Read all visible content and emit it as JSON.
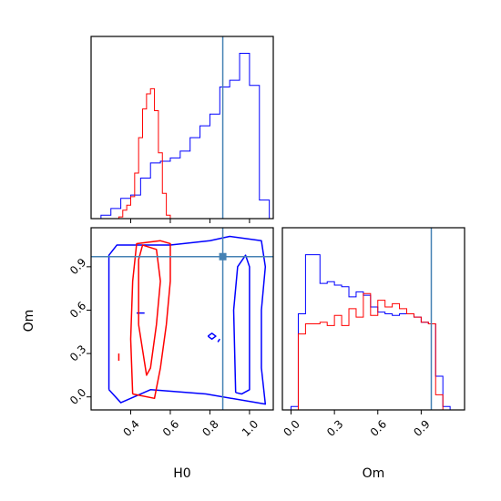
{
  "chart_data": {
    "type": "corner",
    "parameters": [
      "H0",
      "Om"
    ],
    "truth": {
      "H0": 0.865,
      "Om": 0.97
    },
    "colors": {
      "blue": "#0000ff",
      "red": "#ff0000",
      "truth": "#4682b4"
    },
    "panels": [
      {
        "id": "hist-H0",
        "type": "histogram",
        "xlim": [
          0.2,
          1.12
        ],
        "ylim": [
          0,
          1.08
        ],
        "x_ticks": [
          0.4,
          0.6,
          0.8,
          1.0
        ],
        "show_tick_labels": false,
        "series": [
          {
            "color": "blue",
            "edges": [
              0.2,
              0.25,
              0.3,
              0.35,
              0.4,
              0.45,
              0.5,
              0.55,
              0.6,
              0.65,
              0.7,
              0.75,
              0.8,
              0.85,
              0.9,
              0.95,
              1.0,
              1.05,
              1.1
            ],
            "counts": [
              0.0,
              0.02,
              0.06,
              0.12,
              0.14,
              0.24,
              0.33,
              0.34,
              0.36,
              0.4,
              0.48,
              0.55,
              0.62,
              0.78,
              0.82,
              0.98,
              0.79,
              0.11
            ]
          },
          {
            "color": "red",
            "edges": [
              0.34,
              0.36,
              0.38,
              0.4,
              0.42,
              0.44,
              0.46,
              0.48,
              0.5,
              0.52,
              0.54,
              0.56,
              0.58,
              0.6,
              0.62
            ],
            "counts": [
              0.01,
              0.05,
              0.08,
              0.13,
              0.27,
              0.48,
              0.65,
              0.74,
              0.77,
              0.64,
              0.39,
              0.15,
              0.02,
              0.0
            ]
          }
        ]
      },
      {
        "id": "contour-H0-Om",
        "type": "contour",
        "xlim": [
          0.2,
          1.12
        ],
        "ylim": [
          -0.09,
          1.17
        ],
        "x_ticks": [
          0.4,
          0.6,
          0.8,
          1.0
        ],
        "x_tick_labels": [
          "0.4",
          "0.6",
          "0.8",
          "1.0"
        ],
        "y_ticks": [
          0.0,
          0.3,
          0.6,
          0.9
        ],
        "y_tick_labels": [
          "0.0",
          "0.3",
          "0.6",
          "0.9"
        ],
        "xlabel": "H0",
        "ylabel": "Om",
        "contours": [
          {
            "color": "blue",
            "points": [
              [
                0.29,
                0.05
              ],
              [
                0.29,
                0.98
              ],
              [
                0.33,
                1.05
              ],
              [
                0.6,
                1.05
              ],
              [
                0.8,
                1.08
              ],
              [
                0.9,
                1.11
              ],
              [
                1.06,
                1.08
              ],
              [
                1.08,
                0.9
              ],
              [
                1.06,
                0.6
              ],
              [
                1.06,
                0.2
              ],
              [
                1.08,
                -0.05
              ],
              [
                0.78,
                0.02
              ],
              [
                0.5,
                0.05
              ],
              [
                0.35,
                -0.04
              ],
              [
                0.29,
                0.05
              ]
            ]
          },
          {
            "color": "blue",
            "points": [
              [
                0.43,
                0.58
              ],
              [
                0.47,
                0.58
              ]
            ]
          },
          {
            "color": "blue",
            "points": [
              [
                0.79,
                0.42
              ],
              [
                0.81,
                0.4
              ],
              [
                0.83,
                0.42
              ],
              [
                0.81,
                0.44
              ],
              [
                0.79,
                0.42
              ]
            ]
          },
          {
            "color": "blue",
            "points": [
              [
                0.84,
                0.38
              ],
              [
                0.85,
                0.4
              ]
            ]
          },
          {
            "color": "blue",
            "points": [
              [
                0.93,
                0.03
              ],
              [
                0.92,
                0.6
              ],
              [
                0.94,
                0.9
              ],
              [
                0.98,
                0.98
              ],
              [
                1.0,
                0.9
              ],
              [
                1.0,
                0.05
              ],
              [
                0.96,
                0.02
              ],
              [
                0.93,
                0.03
              ]
            ]
          },
          {
            "color": "red",
            "points": [
              [
                0.34,
                0.25
              ],
              [
                0.34,
                0.3
              ]
            ]
          },
          {
            "color": "red",
            "points": [
              [
                0.41,
                0.02
              ],
              [
                0.4,
                0.4
              ],
              [
                0.41,
                0.8
              ],
              [
                0.43,
                1.06
              ],
              [
                0.55,
                1.08
              ],
              [
                0.6,
                1.06
              ],
              [
                0.6,
                0.8
              ],
              [
                0.58,
                0.5
              ],
              [
                0.55,
                0.2
              ],
              [
                0.52,
                -0.01
              ],
              [
                0.41,
                0.02
              ]
            ]
          },
          {
            "color": "red",
            "points": [
              [
                0.44,
                0.5
              ],
              [
                0.44,
                0.95
              ],
              [
                0.46,
                1.05
              ],
              [
                0.53,
                1.02
              ],
              [
                0.55,
                0.8
              ],
              [
                0.53,
                0.5
              ],
              [
                0.5,
                0.2
              ],
              [
                0.48,
                0.15
              ],
              [
                0.44,
                0.5
              ]
            ]
          }
        ]
      },
      {
        "id": "hist-Om",
        "type": "histogram",
        "xlim": [
          -0.06,
          1.2
        ],
        "ylim": [
          0,
          1.08
        ],
        "x_ticks": [
          0.0,
          0.3,
          0.6,
          0.9
        ],
        "x_tick_labels": [
          "0.0",
          "0.3",
          "0.6",
          "0.9"
        ],
        "xlabel": "Om",
        "series": [
          {
            "color": "blue",
            "edges": [
              0.0,
              0.05,
              0.1,
              0.15,
              0.2,
              0.25,
              0.3,
              0.35,
              0.4,
              0.45,
              0.5,
              0.55,
              0.6,
              0.65,
              0.7,
              0.75,
              0.8,
              0.85,
              0.9,
              0.95,
              1.0,
              1.05,
              1.1
            ],
            "counts": [
              0.02,
              0.57,
              0.92,
              0.92,
              0.75,
              0.76,
              0.74,
              0.73,
              0.67,
              0.7,
              0.68,
              0.61,
              0.58,
              0.57,
              0.56,
              0.57,
              0.57,
              0.55,
              0.52,
              0.51,
              0.2,
              0.02
            ]
          },
          {
            "color": "red",
            "edges": [
              0.05,
              0.1,
              0.15,
              0.2,
              0.25,
              0.3,
              0.35,
              0.4,
              0.45,
              0.5,
              0.55,
              0.6,
              0.65,
              0.7,
              0.75,
              0.8,
              0.85,
              0.9,
              0.95,
              1.0,
              1.05
            ],
            "counts": [
              0.45,
              0.51,
              0.51,
              0.52,
              0.5,
              0.56,
              0.5,
              0.6,
              0.55,
              0.69,
              0.56,
              0.65,
              0.61,
              0.63,
              0.6,
              0.57,
              0.55,
              0.52,
              0.51,
              0.09
            ]
          }
        ]
      }
    ]
  }
}
